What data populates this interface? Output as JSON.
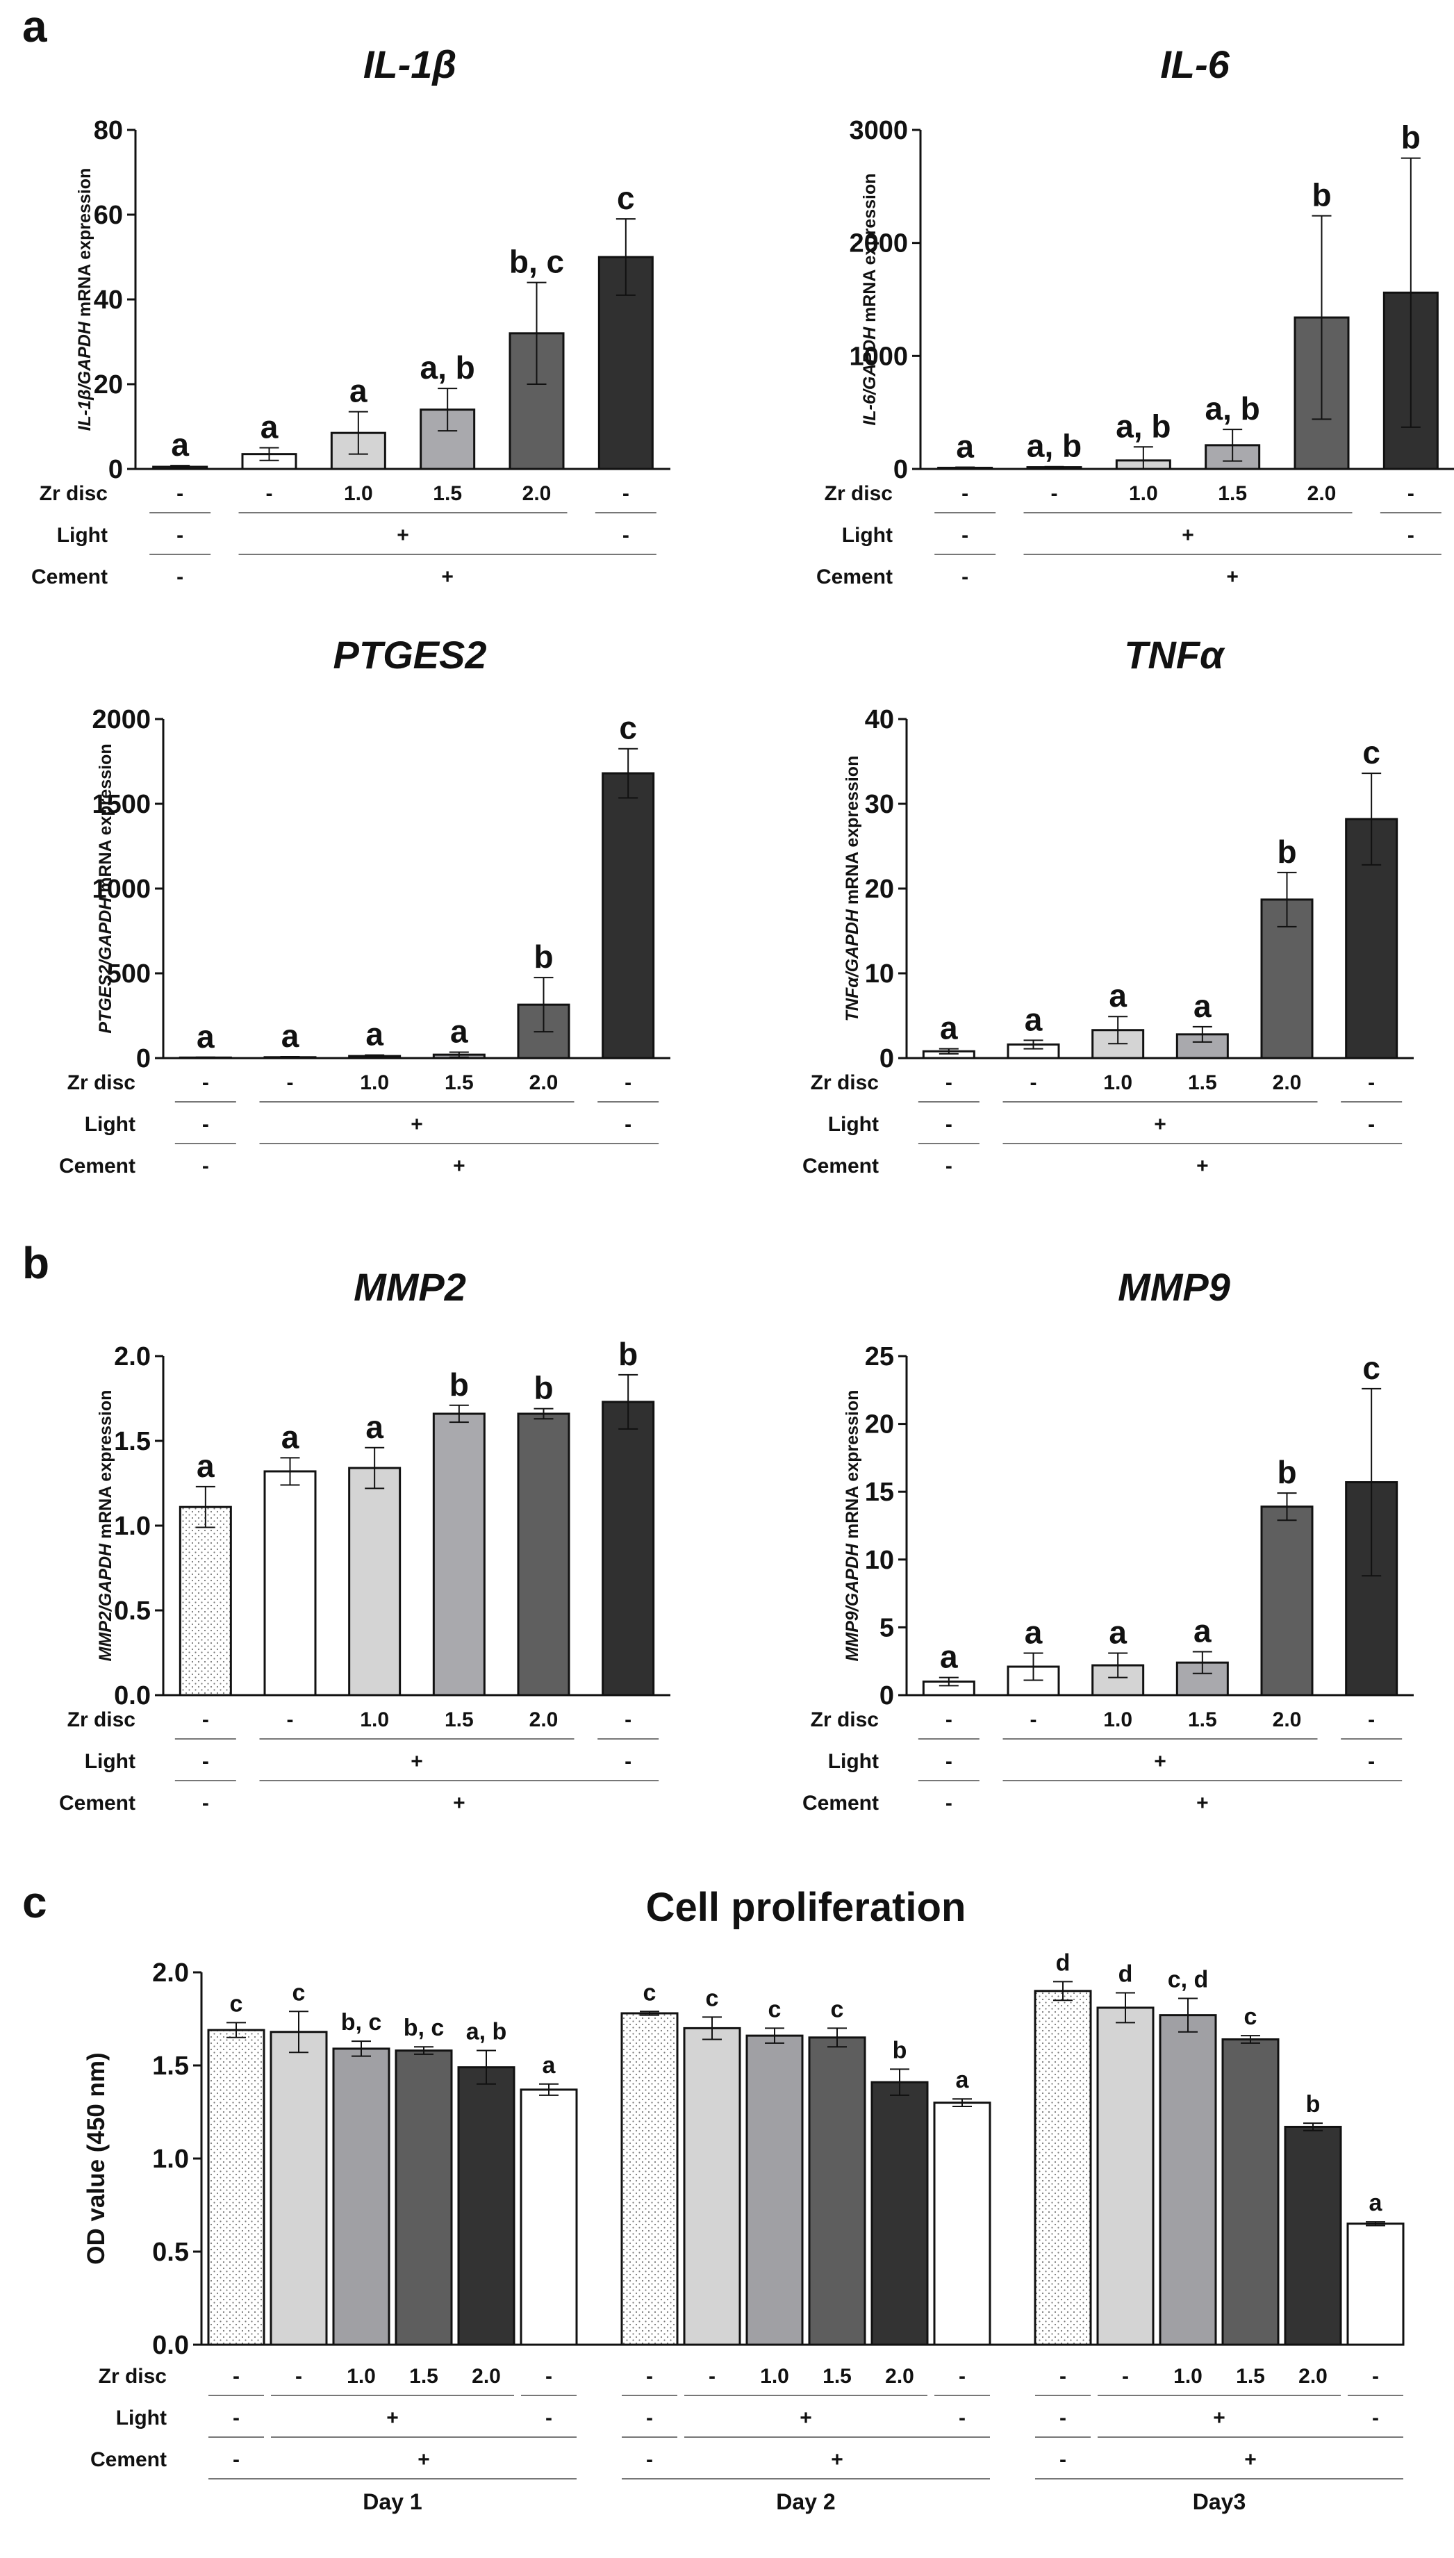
{
  "panel_labels": [
    "a",
    "b",
    "c"
  ],
  "condition_rows": {
    "zr": "Zr disc",
    "light": "Light",
    "cement": "Cement"
  },
  "conditions": {
    "zr": [
      "-",
      "-",
      "1.0",
      "1.5",
      "2.0",
      "-"
    ],
    "light_first": "-",
    "light_group": "+",
    "light_last": "-",
    "cement_first": "-",
    "cement_group": "+"
  },
  "colors": {
    "gene_bars": [
      "#ffffff",
      "#ffffff",
      "#d4d4d4",
      "#a9a9ad",
      "#5f5f5f",
      "#303030"
    ],
    "prolif_bars": [
      "#f1f1f1",
      "#d4d4d4",
      "#a0a0a4",
      "#5e5e5e",
      "#333333",
      "#ffffff"
    ],
    "edge": "#111111"
  },
  "chart_data": [
    {
      "id": "il1b",
      "type": "bar",
      "title": "IL-1β",
      "ylabel": {
        "gene": "IL-1β",
        "housekeeping": "GAPDH",
        "rest": " mRNA expression"
      },
      "ylim": [
        0,
        80
      ],
      "yticks": [
        "0",
        "20",
        "40",
        "60",
        "80"
      ],
      "categories": [
        "-",
        "-",
        "1.0",
        "1.5",
        "2.0",
        "-"
      ],
      "values": [
        0.5,
        3.5,
        8.5,
        14,
        32,
        50
      ],
      "errors": [
        0.3,
        1.5,
        5,
        5,
        12,
        9
      ],
      "labels": [
        "a",
        "a",
        "a",
        "a, b",
        "b, c",
        "c"
      ]
    },
    {
      "id": "il6",
      "type": "bar",
      "title": "IL-6",
      "ylabel": {
        "gene": "IL-6",
        "housekeeping": "GAPDH",
        "rest": " mRNA expression"
      },
      "ylim": [
        0,
        3000
      ],
      "yticks": [
        "0",
        "1000",
        "2000",
        "3000"
      ],
      "categories": [
        "-",
        "-",
        "1.0",
        "1.5",
        "2.0",
        "-"
      ],
      "values": [
        10,
        15,
        75,
        210,
        1340,
        1560
      ],
      "errors": [
        5,
        5,
        120,
        140,
        900,
        1190
      ],
      "labels": [
        "a",
        "a, b",
        "a, b",
        "a, b",
        "b",
        "b"
      ]
    },
    {
      "id": "ptges2",
      "type": "bar",
      "title": "PTGES2",
      "ylabel": {
        "gene": "PTGES2",
        "housekeeping": "GAPDH",
        "rest": " mRNA expression"
      },
      "ylim": [
        0,
        2000
      ],
      "yticks": [
        "0",
        "500",
        "1000",
        "1500",
        "2000"
      ],
      "categories": [
        "-",
        "-",
        "1.0",
        "1.5",
        "2.0",
        "-"
      ],
      "values": [
        3,
        5,
        12,
        20,
        315,
        1680
      ],
      "errors": [
        2,
        3,
        6,
        15,
        160,
        145
      ],
      "labels": [
        "a",
        "a",
        "a",
        "a",
        "b",
        "c"
      ]
    },
    {
      "id": "tnfa",
      "type": "bar",
      "title": "TNFα",
      "ylabel": {
        "gene": "TNFα",
        "housekeeping": "GAPDH",
        "rest": " mRNA expression"
      },
      "ylim": [
        0,
        40
      ],
      "yticks": [
        "0",
        "10",
        "20",
        "30",
        "40"
      ],
      "categories": [
        "-",
        "-",
        "1.0",
        "1.5",
        "2.0",
        "-"
      ],
      "values": [
        0.8,
        1.6,
        3.3,
        2.8,
        18.7,
        28.2
      ],
      "errors": [
        0.3,
        0.5,
        1.6,
        0.9,
        3.2,
        5.4
      ],
      "labels": [
        "a",
        "a",
        "a",
        "a",
        "b",
        "c"
      ]
    },
    {
      "id": "mmp2",
      "type": "bar",
      "title": "MMP2",
      "ylabel": {
        "gene": "MMP2",
        "housekeeping": "GAPDH",
        "rest": " mRNA expression"
      },
      "ylim": [
        0,
        2.0
      ],
      "yticks": [
        "0.0",
        "0.5",
        "1.0",
        "1.5",
        "2.0"
      ],
      "categories": [
        "-",
        "-",
        "1.0",
        "1.5",
        "2.0",
        "-"
      ],
      "values": [
        1.11,
        1.32,
        1.34,
        1.66,
        1.66,
        1.73
      ],
      "errors": [
        0.12,
        0.08,
        0.12,
        0.05,
        0.03,
        0.16
      ],
      "labels": [
        "a",
        "a",
        "a",
        "b",
        "b",
        "b"
      ]
    },
    {
      "id": "mmp9",
      "type": "bar",
      "title": "MMP9",
      "ylabel": {
        "gene": "MMP9",
        "housekeeping": "GAPDH",
        "rest": " mRNA expression"
      },
      "ylim": [
        0,
        25
      ],
      "yticks": [
        "0",
        "5",
        "10",
        "15",
        "20",
        "25"
      ],
      "categories": [
        "-",
        "-",
        "1.0",
        "1.5",
        "2.0",
        "-"
      ],
      "values": [
        1.0,
        2.1,
        2.2,
        2.4,
        13.9,
        15.7
      ],
      "errors": [
        0.3,
        1.0,
        0.9,
        0.8,
        1.0,
        6.9
      ],
      "labels": [
        "a",
        "a",
        "a",
        "a",
        "b",
        "c"
      ]
    },
    {
      "id": "prolif",
      "type": "bar",
      "title": "Cell proliferation",
      "ylabel": "OD value (450 nm)",
      "ylim": [
        0,
        2.0
      ],
      "yticks": [
        "0.0",
        "0.5",
        "1.0",
        "1.5",
        "2.0"
      ],
      "categories": [
        "-",
        "-",
        "1.0",
        "1.5",
        "2.0",
        "-"
      ],
      "groups": [
        {
          "name": "Day 1",
          "values": [
            1.69,
            1.68,
            1.59,
            1.58,
            1.49,
            1.37
          ],
          "errors": [
            0.04,
            0.11,
            0.04,
            0.02,
            0.09,
            0.03
          ],
          "labels": [
            "c",
            "c",
            "b, c",
            "b, c",
            "a, b",
            "a"
          ]
        },
        {
          "name": "Day 2",
          "values": [
            1.78,
            1.7,
            1.66,
            1.65,
            1.41,
            1.3
          ],
          "errors": [
            0.01,
            0.06,
            0.04,
            0.05,
            0.07,
            0.02
          ],
          "labels": [
            "c",
            "c",
            "c",
            "c",
            "b",
            "a"
          ]
        },
        {
          "name": "Day3",
          "values": [
            1.9,
            1.81,
            1.77,
            1.64,
            1.17,
            0.65
          ],
          "errors": [
            0.05,
            0.08,
            0.09,
            0.02,
            0.02,
            0.01
          ],
          "labels": [
            "d",
            "d",
            "c, d",
            "c",
            "b",
            "a"
          ]
        }
      ]
    }
  ]
}
